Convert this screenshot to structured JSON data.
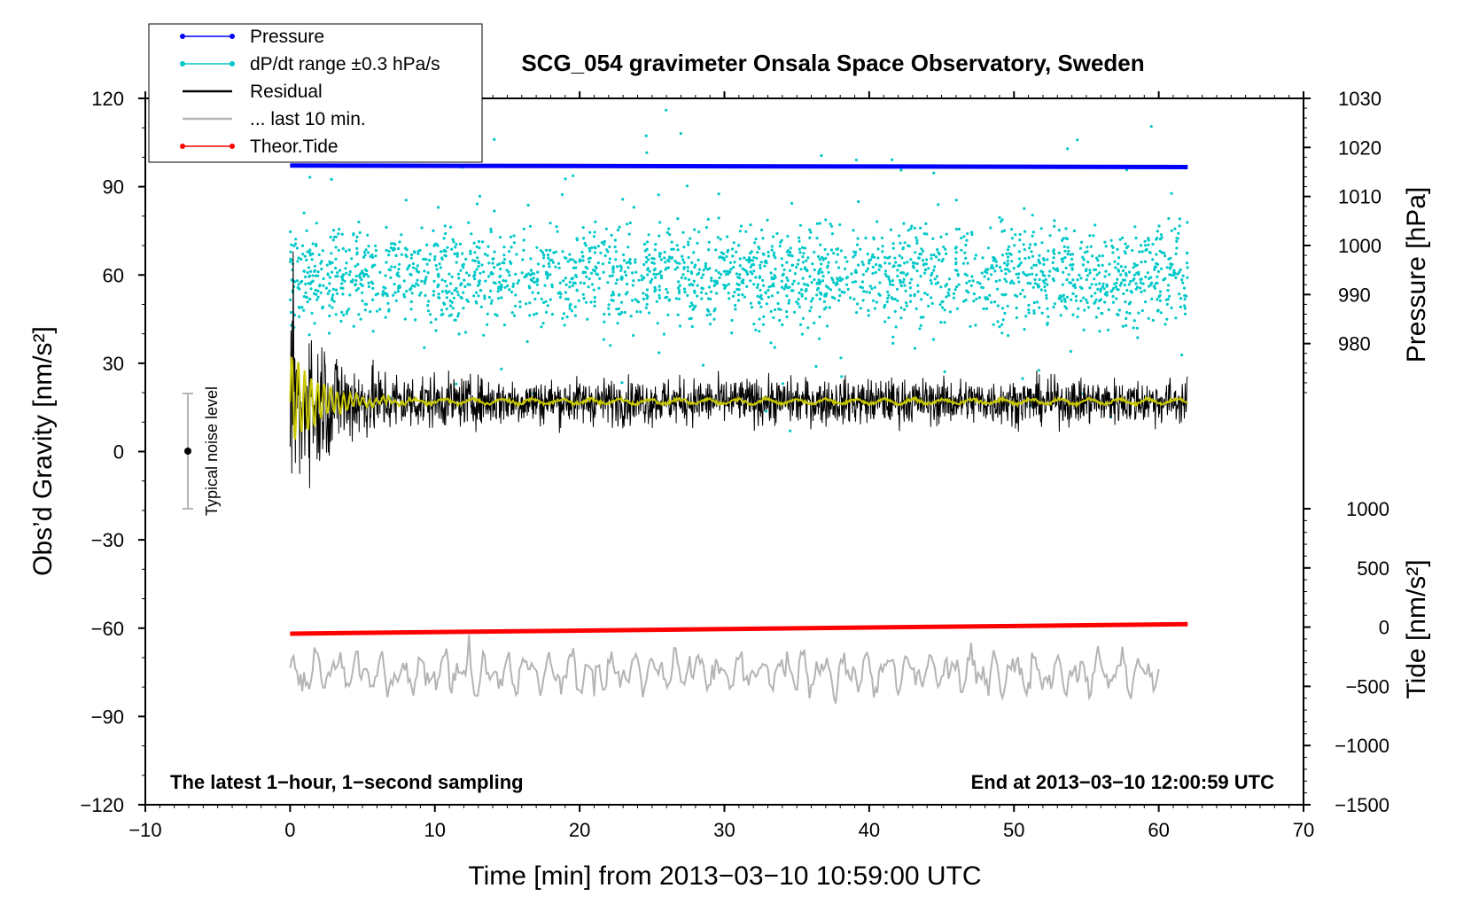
{
  "chart_data": {
    "type": "line",
    "title": "SCG_054 gravimeter Onsala Space Observatory, Sweden",
    "xlabel": "Time [min] from 2013−03−10 10:59:00 UTC",
    "ylabel_left": "Obs’d Gravity [nm/s²]",
    "ylabel_right_pressure": "Pressure [hPa]",
    "ylabel_right_tide": "Tide [nm/s²]",
    "xlim": [
      -10,
      70
    ],
    "ylim_left": [
      -120,
      120
    ],
    "ylim_pressure": [
      970,
      1030
    ],
    "ylim_tide": [
      -1500,
      1000
    ],
    "x_ticks": [
      "−10",
      "0",
      "10",
      "20",
      "30",
      "40",
      "50",
      "60",
      "70"
    ],
    "y_ticks_left": [
      "120",
      "90",
      "60",
      "30",
      "0",
      "−30",
      "−60",
      "−90",
      "−120"
    ],
    "y_ticks_pressure": [
      "1030",
      "1020",
      "1010",
      "1000",
      "990",
      "980"
    ],
    "y_ticks_tide": [
      "1000",
      "500",
      "0",
      "−500",
      "−1000",
      "−1500"
    ],
    "legend": [
      {
        "label": "Pressure",
        "color": "#0000ff",
        "marker": true
      },
      {
        "label": "dP/dt range ±0.3 hPa/s",
        "color": "#00c8c8",
        "marker": true
      },
      {
        "label": "Residual",
        "color": "#000000",
        "marker": false
      },
      {
        "label": "... last 10 min.",
        "color": "#b4b4b4",
        "marker": false
      },
      {
        "label": "Theor.Tide",
        "color": "#ff0000",
        "marker": true
      }
    ],
    "series": [
      {
        "name": "Pressure",
        "axis": "pressure",
        "x": [
          0,
          62
        ],
        "values": [
          1016.3,
          1016.0
        ]
      },
      {
        "name": "Theor.Tide",
        "axis": "tide",
        "x": [
          0,
          62
        ],
        "values": [
          -55,
          25
        ]
      },
      {
        "name": "dP/dt range",
        "axis": "left",
        "center": 60,
        "spread": 12
      },
      {
        "name": "Residual",
        "axis": "left",
        "center": 17,
        "initial_amplitude": 35,
        "steady_amplitude": 10
      },
      {
        "name": "Residual smoothed",
        "axis": "left",
        "center": 17,
        "color": "#c8c800"
      },
      {
        "name": "... last 10 min.",
        "axis": "left",
        "center": -75,
        "amplitude": 10
      }
    ],
    "noise_bar": {
      "label": "Typical noise level",
      "x": -7,
      "center": 0,
      "range": 20
    },
    "annotation_left": "The latest 1−hour, 1−second sampling",
    "annotation_right": "End at 2013−03−10 12:00:59 UTC"
  }
}
